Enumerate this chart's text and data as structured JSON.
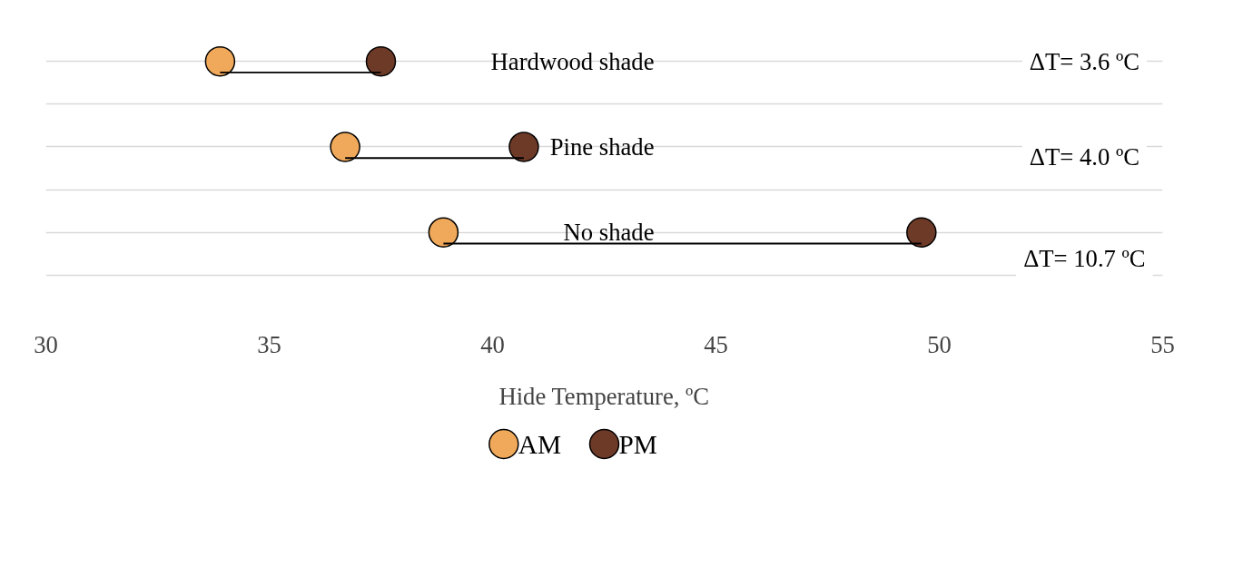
{
  "chart_data": {
    "type": "scatter",
    "orientation": "horizontal",
    "xlabel": "Hide Temperature, ºC",
    "categories": [
      "Hardwood shade",
      "Pine shade",
      "No shade"
    ],
    "xlim": [
      30,
      55
    ],
    "xticks": [
      30,
      35,
      40,
      45,
      50,
      55
    ],
    "grid": "y",
    "legend": "bottom",
    "marker": "circle",
    "series": [
      {
        "type": "bar",
        "color": "#000000",
        "base": [
          33.9,
          36.7,
          38.9
        ],
        "values": [
          3.6,
          4.0,
          10.7
        ]
      },
      {
        "name": "AM",
        "color": "#f0a95a",
        "values": [
          33.9,
          36.7,
          38.9
        ]
      },
      {
        "name": "PM",
        "color": "#6e3a28",
        "values": [
          37.5,
          40.7,
          49.6
        ]
      }
    ],
    "annotations": [
      "ΔT= 3.6 ºC",
      "ΔT= 4.0 ºC",
      "ΔT= 10.7 ºC"
    ]
  }
}
